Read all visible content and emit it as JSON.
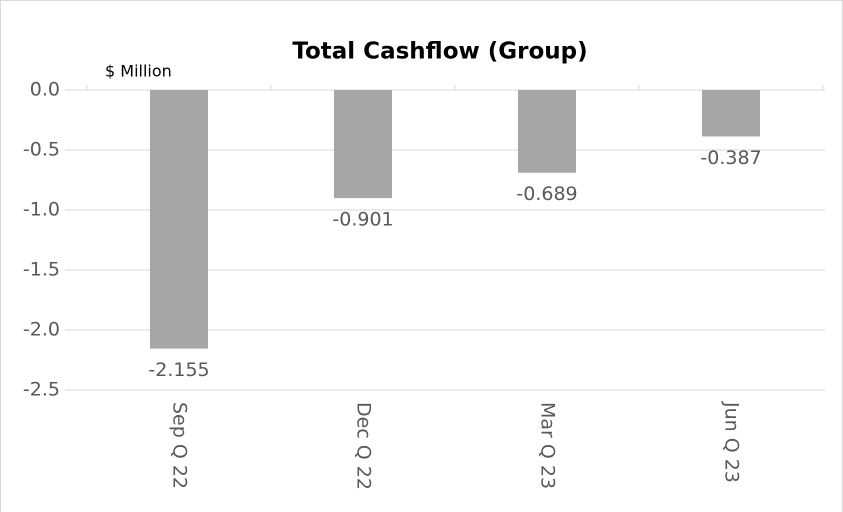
{
  "chart_data": {
    "type": "bar",
    "title": "Total Cashflow (Group)",
    "y_label": "$ Million",
    "categories": [
      "Sep Q 22",
      "Dec Q 22",
      "Mar Q 23",
      "Jun Q 23"
    ],
    "values": [
      -2.155,
      -0.901,
      -0.689,
      -0.387
    ],
    "color": "#a6a6a6",
    "ylim": [
      -2.5,
      0
    ],
    "yticks": [
      {
        "value": 0,
        "label": "0.0"
      },
      -0.5,
      {
        "value": -1,
        "label": "-1.0"
      },
      -1.5,
      {
        "value": -2,
        "label": "-2.0"
      },
      -2.5
    ],
    "grid": true
  }
}
